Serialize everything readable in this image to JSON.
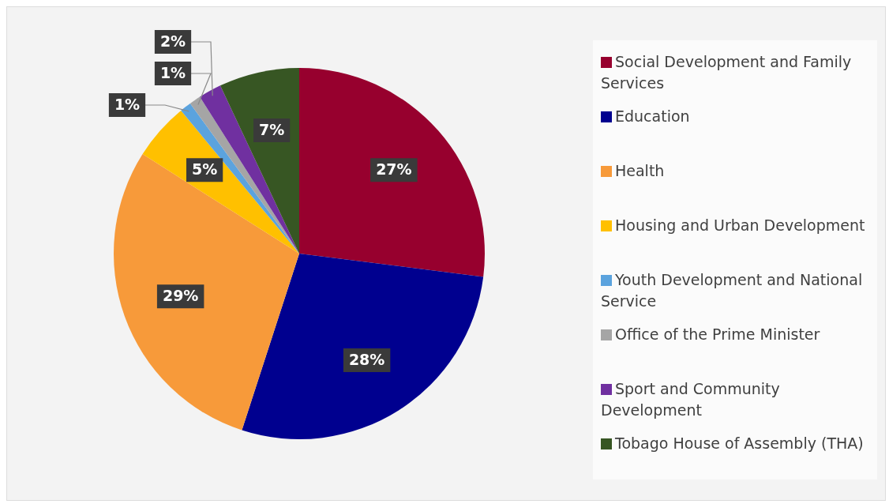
{
  "chart_data": {
    "type": "pie",
    "categories": [
      "Social Development and Family Services",
      "Education",
      "Health",
      "Housing and Urban Development",
      "Youth Development and National Service",
      "Office of the Prime Minister",
      "Sport and Community Development",
      "Tobago House of Assembly (THA)"
    ],
    "values": [
      27,
      28,
      29,
      5,
      1,
      1,
      2,
      7
    ],
    "colors": [
      "#97002e",
      "#00008f",
      "#f79a3a",
      "#ffc000",
      "#5ba3de",
      "#a5a5a5",
      "#7030a0",
      "#375623"
    ],
    "value_labels": [
      "27%",
      "28%",
      "29%",
      "5%",
      "1%",
      "1%",
      "2%",
      "7%"
    ],
    "legend": "right"
  }
}
